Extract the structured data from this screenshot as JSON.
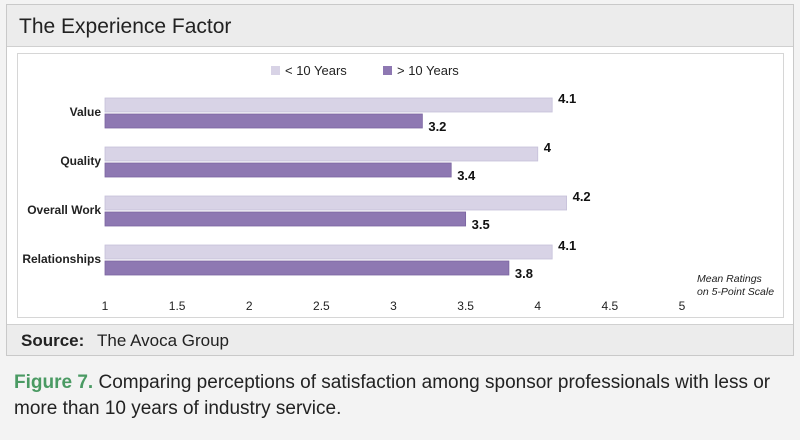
{
  "title": "The Experience Factor",
  "source": {
    "label": "Source:",
    "text": "The Avoca Group"
  },
  "caption": {
    "figure_label": "Figure 7.",
    "text": "Comparing perceptions of satisfaction among sponsor professionals with less or more than 10 years of industry service."
  },
  "chart_note": [
    "Mean Ratings",
    "on 5-Point Scale"
  ],
  "colors": {
    "less_than_10": "#d8d3e6",
    "more_than_10": "#8e78b2"
  },
  "chart_data": {
    "type": "bar",
    "orientation": "horizontal",
    "categories": [
      "Value",
      "Quality",
      "Overall Work",
      "Relationships"
    ],
    "series": [
      {
        "name": "< 10 Years",
        "values": [
          4.1,
          4,
          4.2,
          4.1
        ],
        "labels": [
          "4.1",
          "4",
          "4.2",
          "4.1"
        ]
      },
      {
        "name": "> 10 Years",
        "values": [
          3.2,
          3.4,
          3.5,
          3.8
        ],
        "labels": [
          "3.2",
          "3.4",
          "3.5",
          "3.8"
        ]
      }
    ],
    "xlim": [
      1,
      5
    ],
    "xticks": [
      "1",
      "1.5",
      "2",
      "2.5",
      "3",
      "3.5",
      "4",
      "4.5",
      "5"
    ],
    "grid": false,
    "legend_position": "top-center"
  }
}
